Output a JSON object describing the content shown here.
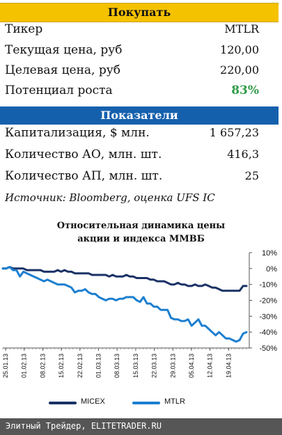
{
  "header": {
    "recommendation": "Покупать"
  },
  "stock": [
    {
      "label": "Тикер",
      "value": "MTLR"
    },
    {
      "label": "Текущая цена, руб",
      "value": "120,00"
    },
    {
      "label": "Целевая цена, руб",
      "value": "220,00"
    },
    {
      "label": "Потенциал роста",
      "value": "83%"
    }
  ],
  "indicators_title": "Показатели",
  "indicators": [
    {
      "label": "Капитализация, $ млн.",
      "value": "1 657,23"
    },
    {
      "label": "Количество АО, млн. шт.",
      "value": "416,3"
    },
    {
      "label": "Количество АП, млн. шт.",
      "value": "25"
    }
  ],
  "source": "Источник: Bloomberg, оценка UFS IC",
  "colors": {
    "banner_yellow": "#f5c200",
    "banner_blue": "#1560ad",
    "upside_green": "#2e9b47",
    "micex": "#1b3266",
    "mtlr": "#1c7fd0",
    "footer": "#565656"
  },
  "chart_data": {
    "type": "line",
    "title_line1": "Относительная динамика цены",
    "title_line2": "акции и индекса ММВБ",
    "x_ticks": [
      "25.01.13",
      "01.02.13",
      "08.02.13",
      "15.02.13",
      "22.02.13",
      "01.03.13",
      "08.03.13",
      "15.03.13",
      "22.03.13",
      "29.03.13",
      "05.04.13",
      "12.04.13",
      "19.04.13"
    ],
    "y_ticks": [
      "10%",
      "0%",
      "-10%",
      "-20%",
      "-30%",
      "-40%",
      "-50%"
    ],
    "ylim": [
      -50,
      10
    ],
    "y_axis_side": "right",
    "grid": false,
    "legend_position": "bottom",
    "series": [
      {
        "name": "MICEX",
        "values": [
          0,
          0,
          1,
          0,
          0,
          0,
          0,
          -1,
          -1,
          -1,
          -1,
          -1,
          -2,
          -2,
          -2,
          -2,
          -1,
          -2,
          -1,
          -2,
          -2,
          -3,
          -3,
          -3,
          -3,
          -3,
          -4,
          -4,
          -4,
          -4,
          -4,
          -5,
          -4,
          -5,
          -5,
          -5,
          -4,
          -5,
          -5,
          -6,
          -6,
          -6,
          -6,
          -7,
          -7,
          -8,
          -8,
          -8,
          -9,
          -10,
          -10,
          -9,
          -10,
          -10,
          -11,
          -11,
          -10,
          -11,
          -11,
          -10,
          -11,
          -12,
          -12,
          -13,
          -14,
          -14,
          -14,
          -14,
          -14,
          -14,
          -11,
          -11
        ]
      },
      {
        "name": "MTLR",
        "values": [
          0,
          0,
          1,
          -1,
          -1,
          -5,
          -2,
          -3,
          -4,
          -5,
          -6,
          -7,
          -8,
          -7,
          -8,
          -9,
          -10,
          -10,
          -10,
          -11,
          -12,
          -15,
          -14,
          -14,
          -13,
          -15,
          -16,
          -16,
          -18,
          -19,
          -20,
          -19,
          -19,
          -20,
          -19,
          -19,
          -18,
          -18,
          -18,
          -20,
          -21,
          -18,
          -22,
          -22,
          -24,
          -24,
          -26,
          -26,
          -26,
          -31,
          -32,
          -32,
          -33,
          -33,
          -32,
          -36,
          -34,
          -32,
          -36,
          -36,
          -38,
          -40,
          -42,
          -40,
          -42,
          -44,
          -44,
          -45,
          -46,
          -45,
          -41,
          -40
        ]
      }
    ]
  },
  "footer": {
    "text": "Элитный Трейдер, ELITETRADER.RU"
  }
}
